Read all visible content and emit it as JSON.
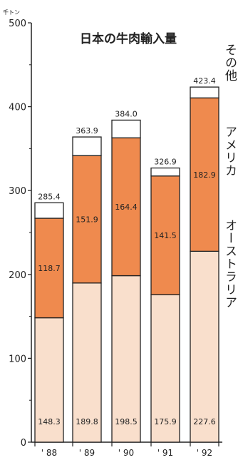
{
  "chart_data": {
    "type": "bar",
    "stacked": true,
    "title": "日本の牛肉輸入量",
    "unit": "千トン",
    "categories": [
      "' 88",
      "' 89",
      "' 90",
      "' 91",
      "' 92"
    ],
    "series": [
      {
        "name": "オーストラリア",
        "values": [
          148.3,
          189.8,
          198.5,
          175.9,
          227.6
        ],
        "color": "#f9dfcc"
      },
      {
        "name": "アメリカ",
        "values": [
          118.7,
          151.9,
          164.4,
          141.5,
          182.9
        ],
        "color": "#ef8a4e"
      },
      {
        "name": "その他",
        "values": [
          18.4,
          22.2,
          21.1,
          9.5,
          12.9
        ],
        "color": "#ffffff"
      }
    ],
    "totals": [
      285.4,
      363.9,
      384.0,
      326.9,
      423.4
    ],
    "y_ticks": [
      "0",
      "100",
      "200",
      "300",
      "400",
      "500"
    ],
    "ylim": [
      0,
      500
    ],
    "grid": false,
    "legend": "right"
  }
}
